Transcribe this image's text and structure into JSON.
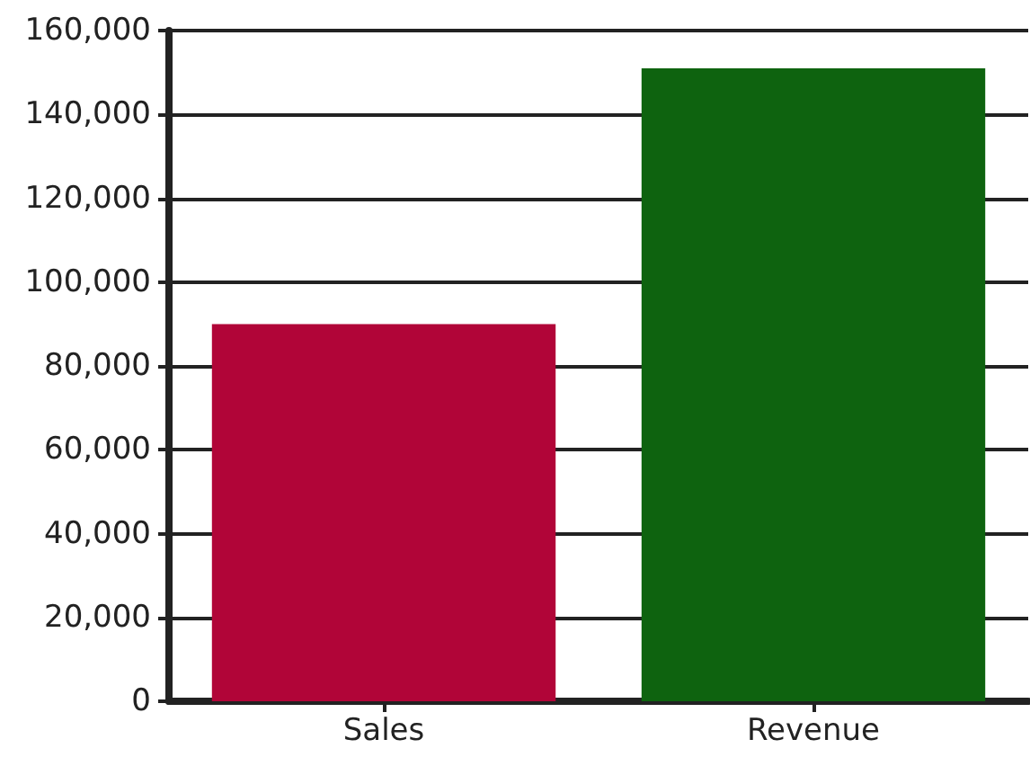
{
  "chart_data": {
    "type": "bar",
    "categories": [
      "Sales",
      "Revenue"
    ],
    "values": [
      90000,
      151000
    ],
    "colors": [
      "#b10538",
      "#0e630f"
    ],
    "ylim": [
      0,
      160000
    ],
    "yticks": [
      0,
      {
        "value": 20000,
        "label": "20,000"
      },
      {
        "value": 40000,
        "label": "40,000"
      },
      {
        "value": 60000,
        "label": "60,000"
      },
      {
        "value": 80000,
        "label": "80,000"
      },
      {
        "value": 100000,
        "label": "100,000"
      },
      {
        "value": 120000,
        "label": "120,000"
      },
      {
        "value": 140000,
        "label": "140,000"
      },
      {
        "value": 160000,
        "label": "160,000"
      }
    ],
    "grid": "y"
  }
}
